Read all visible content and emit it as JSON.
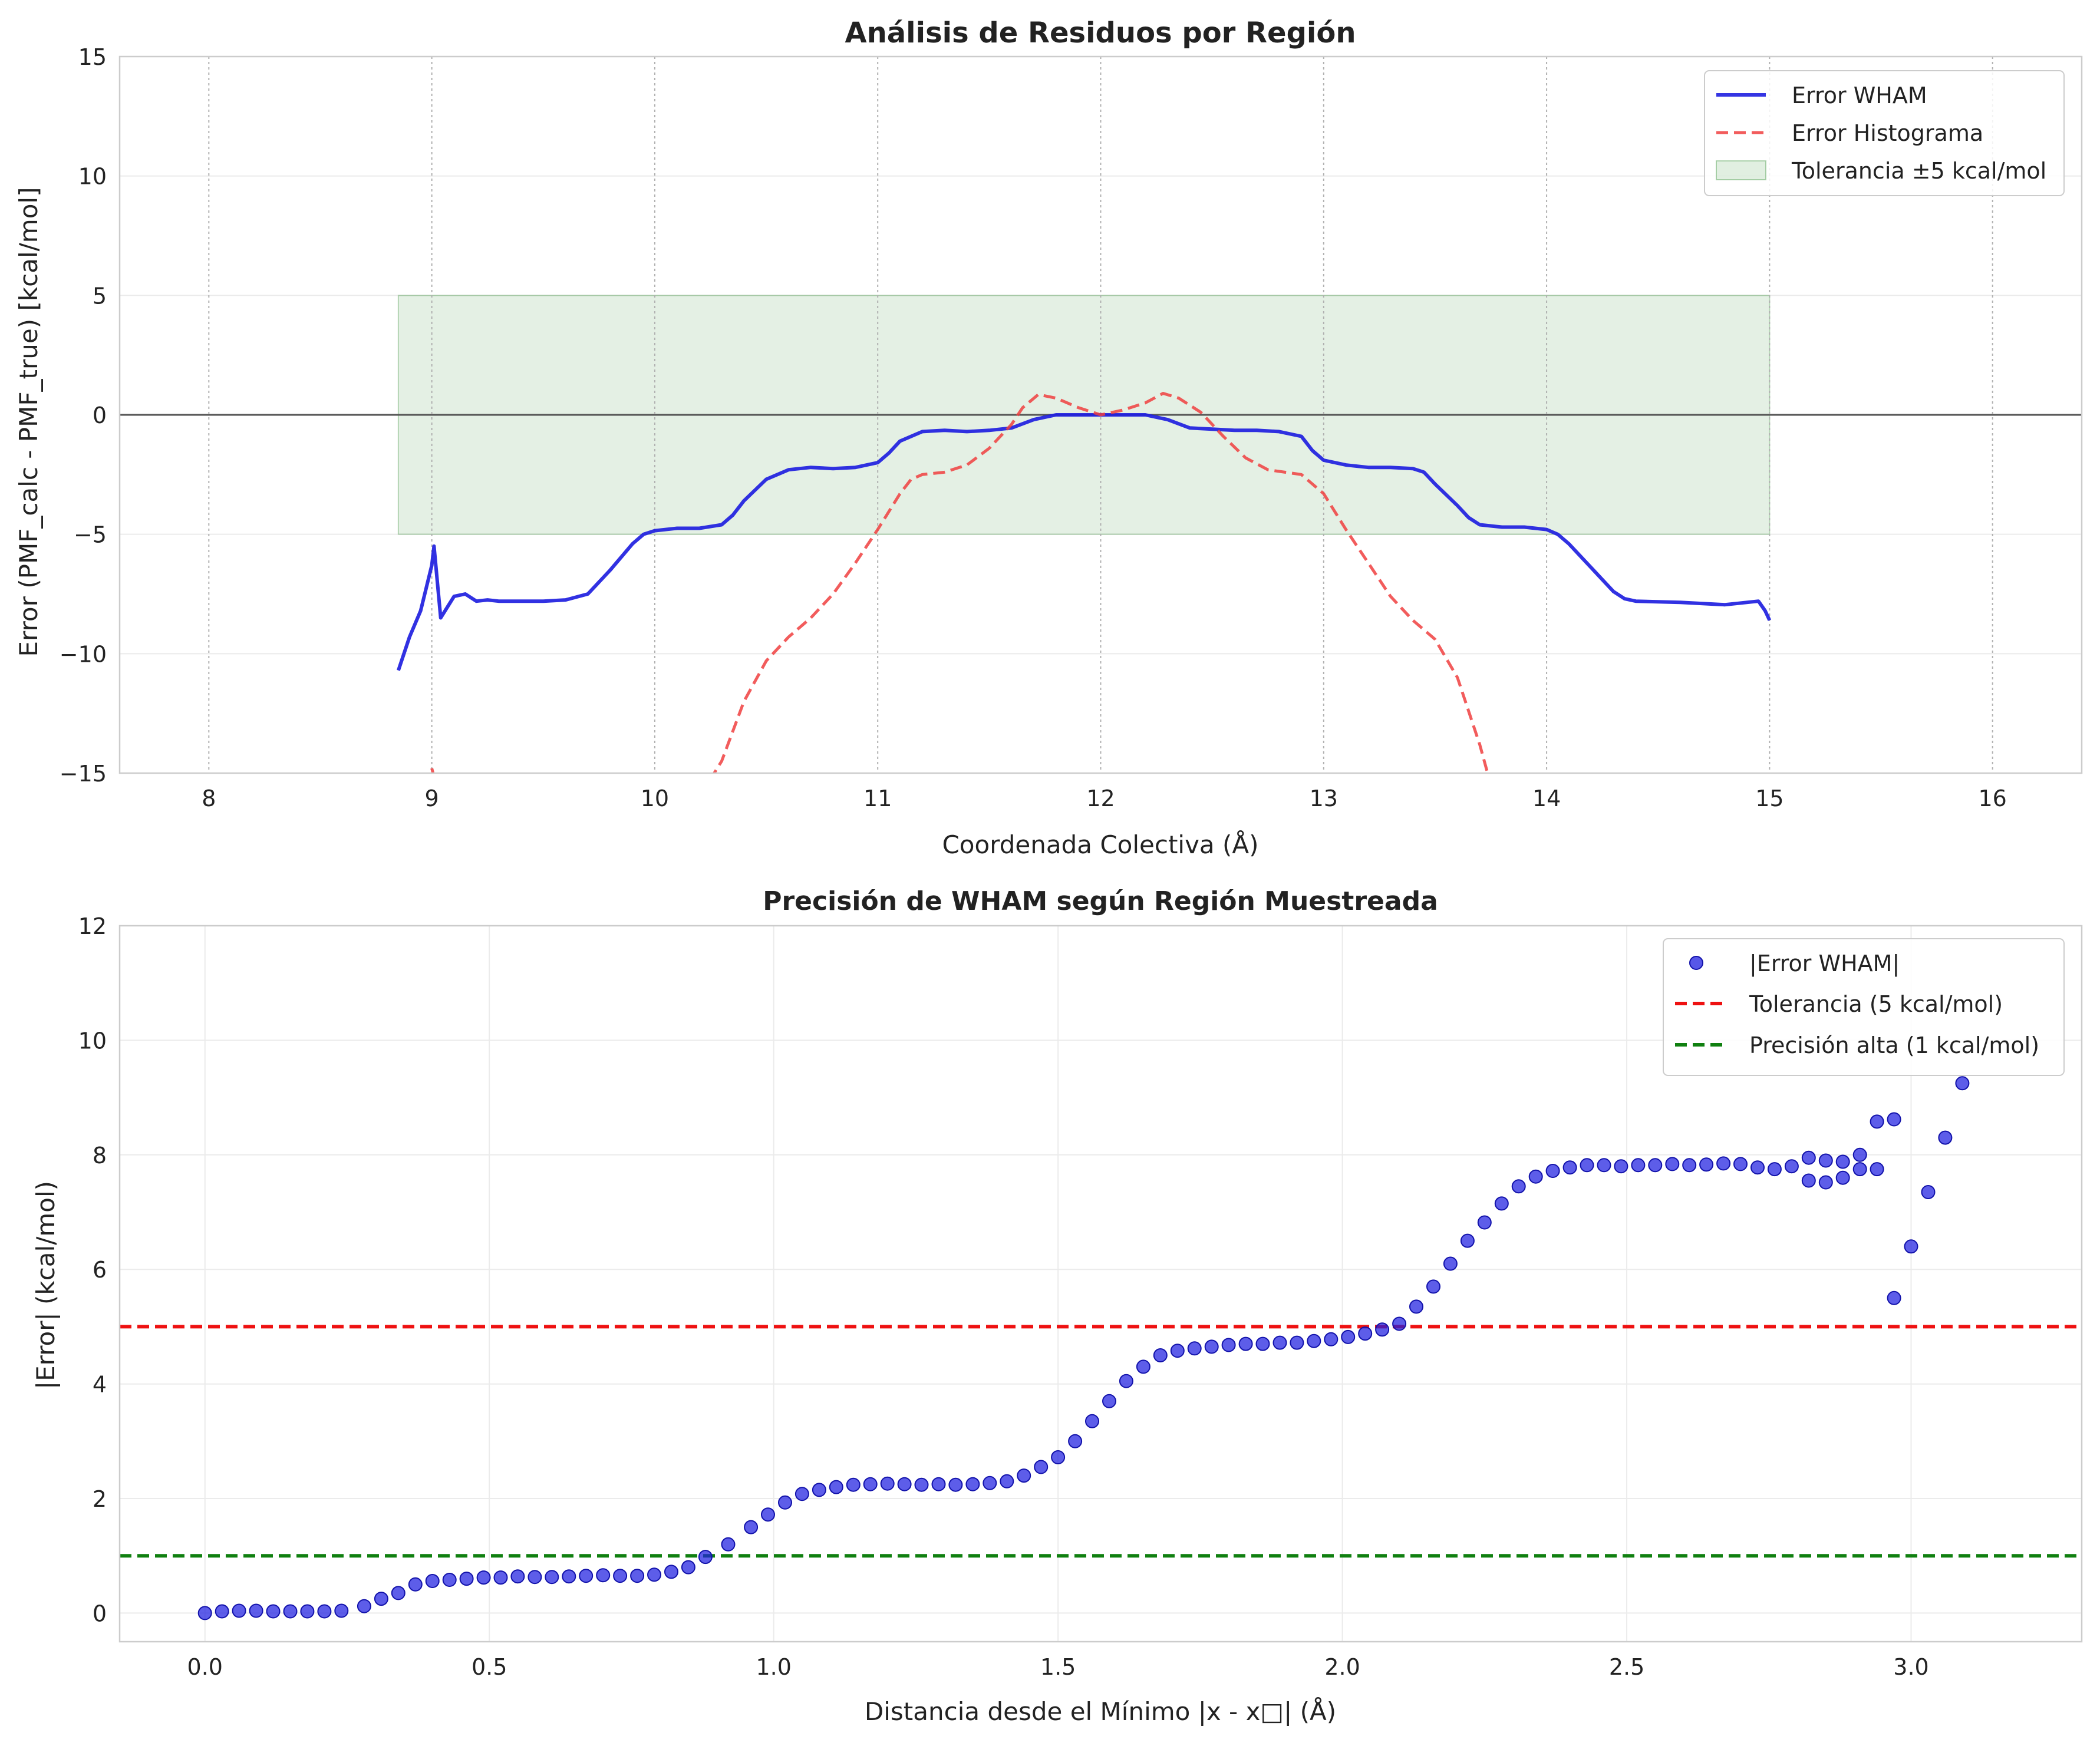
{
  "chart_data": [
    {
      "type": "line",
      "title": "Análisis de Residuos por Región",
      "xlabel": "Coordenada Colectiva (Å)",
      "ylabel": "Error (PMF_calc - PMF_true) [kcal/mol]",
      "xlim": [
        7.6,
        16.4
      ],
      "ylim": [
        -15,
        15
      ],
      "xticks": [
        "8",
        "9",
        "10",
        "11",
        "12",
        "13",
        "14",
        "15",
        "16"
      ],
      "yticks": [
        "−15",
        "−10",
        "−5",
        "0",
        "5",
        "10",
        "15"
      ],
      "grid": true,
      "legend_position": "top-right",
      "legend": [
        "Error WHAM",
        "Error Histograma",
        "Tolerancia ±5 kcal/mol"
      ],
      "band": {
        "x": [
          8.85,
          15.0
        ],
        "y": [
          -5,
          5
        ],
        "color": "#2e8b2e"
      },
      "reference_line": {
        "y": 0,
        "color": "#555555"
      },
      "series": [
        {
          "name": "Error WHAM",
          "color": "#1f1fe0",
          "style": "solid",
          "points": [
            [
              8.85,
              -10.7
            ],
            [
              8.9,
              -9.3
            ],
            [
              8.95,
              -8.2
            ],
            [
              9.0,
              -6.3
            ],
            [
              9.01,
              -5.5
            ],
            [
              9.04,
              -8.5
            ],
            [
              9.1,
              -7.6
            ],
            [
              9.15,
              -7.5
            ],
            [
              9.2,
              -7.8
            ],
            [
              9.25,
              -7.75
            ],
            [
              9.3,
              -7.8
            ],
            [
              9.4,
              -7.8
            ],
            [
              9.5,
              -7.8
            ],
            [
              9.6,
              -7.75
            ],
            [
              9.7,
              -7.5
            ],
            [
              9.8,
              -6.5
            ],
            [
              9.9,
              -5.4
            ],
            [
              9.95,
              -5.0
            ],
            [
              10.0,
              -4.85
            ],
            [
              10.1,
              -4.75
            ],
            [
              10.2,
              -4.75
            ],
            [
              10.3,
              -4.6
            ],
            [
              10.35,
              -4.2
            ],
            [
              10.4,
              -3.6
            ],
            [
              10.5,
              -2.7
            ],
            [
              10.6,
              -2.3
            ],
            [
              10.7,
              -2.2
            ],
            [
              10.8,
              -2.25
            ],
            [
              10.9,
              -2.2
            ],
            [
              11.0,
              -2.0
            ],
            [
              11.05,
              -1.6
            ],
            [
              11.1,
              -1.1
            ],
            [
              11.2,
              -0.7
            ],
            [
              11.3,
              -0.65
            ],
            [
              11.4,
              -0.7
            ],
            [
              11.5,
              -0.65
            ],
            [
              11.6,
              -0.55
            ],
            [
              11.7,
              -0.2
            ],
            [
              11.8,
              0.0
            ],
            [
              12.0,
              0.0
            ],
            [
              12.1,
              0.0
            ],
            [
              12.2,
              0.0
            ],
            [
              12.3,
              -0.2
            ],
            [
              12.4,
              -0.55
            ],
            [
              12.5,
              -0.6
            ],
            [
              12.6,
              -0.65
            ],
            [
              12.7,
              -0.65
            ],
            [
              12.8,
              -0.7
            ],
            [
              12.9,
              -0.9
            ],
            [
              12.95,
              -1.5
            ],
            [
              13.0,
              -1.9
            ],
            [
              13.1,
              -2.1
            ],
            [
              13.2,
              -2.2
            ],
            [
              13.3,
              -2.2
            ],
            [
              13.4,
              -2.25
            ],
            [
              13.45,
              -2.4
            ],
            [
              13.5,
              -2.9
            ],
            [
              13.6,
              -3.8
            ],
            [
              13.65,
              -4.3
            ],
            [
              13.7,
              -4.6
            ],
            [
              13.8,
              -4.7
            ],
            [
              13.9,
              -4.7
            ],
            [
              14.0,
              -4.8
            ],
            [
              14.05,
              -5.0
            ],
            [
              14.1,
              -5.4
            ],
            [
              14.2,
              -6.4
            ],
            [
              14.3,
              -7.4
            ],
            [
              14.35,
              -7.7
            ],
            [
              14.4,
              -7.8
            ],
            [
              14.6,
              -7.85
            ],
            [
              14.7,
              -7.9
            ],
            [
              14.8,
              -7.95
            ],
            [
              14.9,
              -7.85
            ],
            [
              14.95,
              -7.8
            ],
            [
              14.98,
              -8.2
            ],
            [
              15.0,
              -8.6
            ]
          ]
        },
        {
          "name": "Error Histograma",
          "color": "#f04040",
          "style": "dashed",
          "points": [
            [
              9.0,
              -14.8
            ],
            [
              9.02,
              -15.5
            ],
            [
              10.2,
              -16.0
            ],
            [
              10.3,
              -14.5
            ],
            [
              10.4,
              -12.0
            ],
            [
              10.5,
              -10.3
            ],
            [
              10.6,
              -9.3
            ],
            [
              10.7,
              -8.5
            ],
            [
              10.8,
              -7.5
            ],
            [
              10.9,
              -6.2
            ],
            [
              11.0,
              -4.8
            ],
            [
              11.1,
              -3.3
            ],
            [
              11.15,
              -2.7
            ],
            [
              11.2,
              -2.5
            ],
            [
              11.3,
              -2.4
            ],
            [
              11.4,
              -2.1
            ],
            [
              11.5,
              -1.4
            ],
            [
              11.6,
              -0.4
            ],
            [
              11.65,
              0.3
            ],
            [
              11.72,
              0.85
            ],
            [
              11.8,
              0.7
            ],
            [
              11.9,
              0.3
            ],
            [
              12.0,
              0.0
            ],
            [
              12.1,
              0.2
            ],
            [
              12.2,
              0.5
            ],
            [
              12.28,
              0.9
            ],
            [
              12.35,
              0.7
            ],
            [
              12.45,
              0.1
            ],
            [
              12.55,
              -0.9
            ],
            [
              12.65,
              -1.8
            ],
            [
              12.75,
              -2.3
            ],
            [
              12.9,
              -2.5
            ],
            [
              13.0,
              -3.3
            ],
            [
              13.1,
              -4.8
            ],
            [
              13.2,
              -6.2
            ],
            [
              13.3,
              -7.6
            ],
            [
              13.4,
              -8.6
            ],
            [
              13.5,
              -9.4
            ],
            [
              13.6,
              -11.0
            ],
            [
              13.7,
              -13.8
            ],
            [
              13.75,
              -15.5
            ]
          ]
        }
      ]
    },
    {
      "type": "scatter",
      "title": "Precisión de WHAM según Región Muestreada",
      "xlabel": "Distancia desde el Mínimo |x - x□| (Å)",
      "ylabel": "|Error| (kcal/mol)",
      "xlim": [
        -0.15,
        3.3
      ],
      "ylim": [
        -0.5,
        12
      ],
      "xticks": [
        "0.0",
        "0.5",
        "1.0",
        "1.5",
        "2.0",
        "2.5",
        "3.0"
      ],
      "yticks": [
        "0",
        "2",
        "4",
        "6",
        "8",
        "10",
        "12"
      ],
      "grid": true,
      "legend_position": "top-right",
      "legend": [
        "|Error WHAM|",
        "Tolerancia (5 kcal/mol)",
        "Precisión alta (1 kcal/mol)"
      ],
      "reference_lines": [
        {
          "name": "Tolerancia (5 kcal/mol)",
          "y": 5,
          "color": "#ee1111"
        },
        {
          "name": "Precisión alta (1 kcal/mol)",
          "y": 1,
          "color": "#108010"
        }
      ],
      "series": [
        {
          "name": "|Error WHAM|",
          "color": "#1f1fe0",
          "points": [
            [
              0.0,
              0.0
            ],
            [
              0.03,
              0.03
            ],
            [
              0.06,
              0.04
            ],
            [
              0.09,
              0.04
            ],
            [
              0.12,
              0.03
            ],
            [
              0.15,
              0.03
            ],
            [
              0.18,
              0.03
            ],
            [
              0.21,
              0.03
            ],
            [
              0.24,
              0.04
            ],
            [
              0.28,
              0.12
            ],
            [
              0.31,
              0.25
            ],
            [
              0.34,
              0.35
            ],
            [
              0.37,
              0.5
            ],
            [
              0.4,
              0.56
            ],
            [
              0.43,
              0.58
            ],
            [
              0.46,
              0.6
            ],
            [
              0.49,
              0.62
            ],
            [
              0.52,
              0.62
            ],
            [
              0.55,
              0.64
            ],
            [
              0.58,
              0.63
            ],
            [
              0.61,
              0.63
            ],
            [
              0.64,
              0.64
            ],
            [
              0.67,
              0.65
            ],
            [
              0.7,
              0.66
            ],
            [
              0.73,
              0.65
            ],
            [
              0.76,
              0.65
            ],
            [
              0.79,
              0.67
            ],
            [
              0.82,
              0.72
            ],
            [
              0.85,
              0.8
            ],
            [
              0.88,
              0.98
            ],
            [
              0.92,
              1.2
            ],
            [
              0.96,
              1.5
            ],
            [
              0.99,
              1.72
            ],
            [
              1.02,
              1.93
            ],
            [
              1.05,
              2.08
            ],
            [
              1.08,
              2.15
            ],
            [
              1.11,
              2.2
            ],
            [
              1.14,
              2.24
            ],
            [
              1.17,
              2.25
            ],
            [
              1.2,
              2.26
            ],
            [
              1.23,
              2.25
            ],
            [
              1.26,
              2.24
            ],
            [
              1.29,
              2.25
            ],
            [
              1.32,
              2.24
            ],
            [
              1.35,
              2.25
            ],
            [
              1.38,
              2.27
            ],
            [
              1.41,
              2.3
            ],
            [
              1.44,
              2.4
            ],
            [
              1.47,
              2.55
            ],
            [
              1.5,
              2.72
            ],
            [
              1.53,
              3.0
            ],
            [
              1.56,
              3.35
            ],
            [
              1.59,
              3.7
            ],
            [
              1.62,
              4.05
            ],
            [
              1.65,
              4.3
            ],
            [
              1.68,
              4.5
            ],
            [
              1.71,
              4.58
            ],
            [
              1.74,
              4.62
            ],
            [
              1.77,
              4.65
            ],
            [
              1.8,
              4.68
            ],
            [
              1.83,
              4.7
            ],
            [
              1.86,
              4.7
            ],
            [
              1.89,
              4.72
            ],
            [
              1.92,
              4.72
            ],
            [
              1.95,
              4.75
            ],
            [
              1.98,
              4.78
            ],
            [
              2.01,
              4.82
            ],
            [
              2.04,
              4.88
            ],
            [
              2.07,
              4.95
            ],
            [
              2.1,
              5.05
            ],
            [
              2.13,
              5.35
            ],
            [
              2.16,
              5.7
            ],
            [
              2.19,
              6.1
            ],
            [
              2.22,
              6.5
            ],
            [
              2.25,
              6.82
            ],
            [
              2.28,
              7.15
            ],
            [
              2.31,
              7.45
            ],
            [
              2.34,
              7.62
            ],
            [
              2.37,
              7.72
            ],
            [
              2.4,
              7.78
            ],
            [
              2.43,
              7.82
            ],
            [
              2.46,
              7.82
            ],
            [
              2.49,
              7.8
            ],
            [
              2.52,
              7.82
            ],
            [
              2.55,
              7.82
            ],
            [
              2.58,
              7.84
            ],
            [
              2.61,
              7.82
            ],
            [
              2.64,
              7.83
            ],
            [
              2.67,
              7.85
            ],
            [
              2.7,
              7.84
            ],
            [
              2.73,
              7.78
            ],
            [
              2.76,
              7.75
            ],
            [
              2.79,
              7.8
            ],
            [
              2.82,
              7.55
            ],
            [
              2.82,
              7.95
            ],
            [
              2.85,
              7.52
            ],
            [
              2.85,
              7.9
            ],
            [
              2.88,
              7.6
            ],
            [
              2.88,
              7.88
            ],
            [
              2.91,
              7.75
            ],
            [
              2.91,
              8.0
            ],
            [
              2.94,
              7.75
            ],
            [
              2.94,
              8.58
            ],
            [
              2.97,
              5.5
            ],
            [
              2.97,
              8.62
            ],
            [
              3.0,
              6.4
            ],
            [
              3.03,
              7.35
            ],
            [
              3.06,
              8.3
            ],
            [
              3.09,
              9.25
            ]
          ]
        }
      ]
    }
  ]
}
